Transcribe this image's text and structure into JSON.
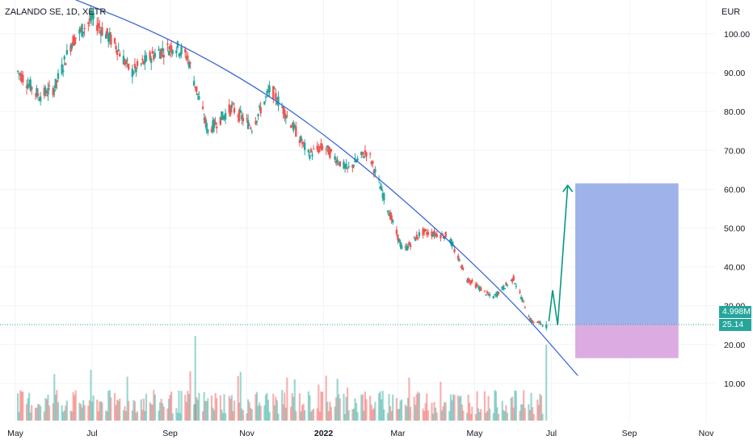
{
  "header": {
    "symbol_title": "ZALANDO SE, 1D, XETR",
    "currency": "EUR"
  },
  "badges": {
    "volume_value": "4.998M",
    "last_price": "25.14"
  },
  "colors": {
    "up": "#26a69a",
    "down": "#ef5350",
    "trendline": "#2f5fd6",
    "projection_arrow": "#089981",
    "target_zone": "#9aaee9",
    "stop_zone": "#d9a7e0",
    "grid": "#f0f3fa",
    "last_price_line": "#26a69a"
  },
  "chart_data": {
    "type": "candlestick",
    "instrument": "ZALANDO SE",
    "interval": "1D",
    "exchange": "XETR",
    "y_axis": {
      "ticks": [
        10,
        20,
        30,
        40,
        50,
        60,
        70,
        80,
        90,
        100
      ],
      "tick_labels": [
        "10.00",
        "20.00",
        "30.00",
        "40.00",
        "50.00",
        "60.00",
        "70.00",
        "80.00",
        "90.00",
        "100.00"
      ],
      "range": [
        0,
        110
      ]
    },
    "x_axis": {
      "tick_labels": [
        "May",
        "Jul",
        "Sep",
        "Nov",
        "2022",
        "Mar",
        "May",
        "Jul",
        "Sep",
        "Nov"
      ],
      "bold_labels": [
        "2022"
      ],
      "range": [
        "2021-05-01",
        "2022-11-01"
      ]
    },
    "price_path": [
      {
        "date": "2021-05-01",
        "close": 91
      },
      {
        "date": "2021-05-20",
        "close": 84
      },
      {
        "date": "2021-06-01",
        "close": 86
      },
      {
        "date": "2021-06-15",
        "close": 98
      },
      {
        "date": "2021-07-01",
        "close": 104
      },
      {
        "date": "2021-07-20",
        "close": 97
      },
      {
        "date": "2021-08-01",
        "close": 90
      },
      {
        "date": "2021-08-20",
        "close": 95
      },
      {
        "date": "2021-09-05",
        "close": 97
      },
      {
        "date": "2021-09-15",
        "close": 94
      },
      {
        "date": "2021-10-01",
        "close": 75
      },
      {
        "date": "2021-10-20",
        "close": 81
      },
      {
        "date": "2021-11-05",
        "close": 76
      },
      {
        "date": "2021-11-20",
        "close": 86
      },
      {
        "date": "2021-12-01",
        "close": 80
      },
      {
        "date": "2021-12-20",
        "close": 69
      },
      {
        "date": "2022-01-01",
        "close": 71
      },
      {
        "date": "2022-01-20",
        "close": 65
      },
      {
        "date": "2022-02-05",
        "close": 70
      },
      {
        "date": "2022-02-20",
        "close": 56
      },
      {
        "date": "2022-03-05",
        "close": 44
      },
      {
        "date": "2022-03-20",
        "close": 49
      },
      {
        "date": "2022-04-10",
        "close": 48
      },
      {
        "date": "2022-04-25",
        "close": 37
      },
      {
        "date": "2022-05-15",
        "close": 32
      },
      {
        "date": "2022-06-01",
        "close": 37
      },
      {
        "date": "2022-06-15",
        "close": 26
      },
      {
        "date": "2022-06-27",
        "close": 25.14
      }
    ],
    "last_price": 25.14,
    "last_volume": "4.998M",
    "trendline": {
      "points": [
        {
          "date": "2021-06-01",
          "price": 111
        },
        {
          "date": "2021-09-01",
          "price": 99
        },
        {
          "date": "2021-12-01",
          "price": 82
        },
        {
          "date": "2022-03-01",
          "price": 59
        },
        {
          "date": "2022-06-01",
          "price": 31
        },
        {
          "date": "2022-07-22",
          "price": 12
        }
      ]
    },
    "projection_arrow": {
      "points": [
        {
          "date": "2022-06-29",
          "price": 26
        },
        {
          "date": "2022-07-02",
          "price": 34
        },
        {
          "date": "2022-07-06",
          "price": 25
        },
        {
          "date": "2022-07-14",
          "price": 61
        }
      ]
    },
    "position": {
      "entry": 25.14,
      "target": 61.5,
      "stop": 16.5,
      "start": "2022-07-20",
      "end": "2022-10-10"
    }
  }
}
